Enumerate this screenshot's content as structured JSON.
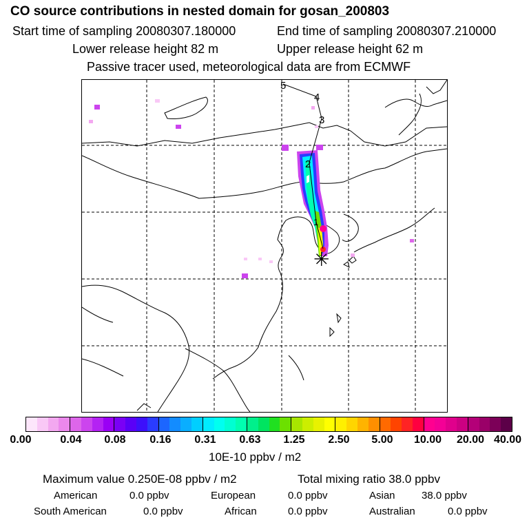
{
  "header": {
    "title": "CO  source contributions in nested domain for gosan_200803",
    "start_time": "Start time of sampling 20080307.180000",
    "end_time": "End time of sampling 20080307.210000",
    "lower_release": "Lower release height   82 m",
    "upper_release": "Upper release height   62 m",
    "tracer_note": "Passive tracer used, meteorological data are from ECMWF"
  },
  "map": {
    "trajectory_labels": [
      "1",
      "2",
      "3",
      "4",
      "5"
    ],
    "receptor_symbol": "✳"
  },
  "colorbar": {
    "blocks": [
      [
        "#fde6fb",
        "#f9c8f6",
        "#f3a8f0",
        "#eb88ec"
      ],
      [
        "#dd66ea",
        "#cc44ee",
        "#b422f3",
        "#9a00f5"
      ],
      [
        "#7a00f5",
        "#5a00f7",
        "#3c10fb",
        "#2a3cff"
      ],
      [
        "#1c66ff",
        "#138cff",
        "#0aaeff",
        "#00cfff"
      ],
      [
        "#00ecff",
        "#00fff0",
        "#00ffd2",
        "#00ffb0"
      ],
      [
        "#00f08c",
        "#00e460",
        "#20e020",
        "#6ce000"
      ],
      [
        "#a8e600",
        "#ccee00",
        "#e8f200",
        "#ffff00"
      ],
      [
        "#fff000",
        "#ffd500",
        "#ffb300",
        "#ff8f00"
      ],
      [
        "#ff6a00",
        "#ff4400",
        "#ff2424",
        "#ff0040"
      ],
      [
        "#ff0090",
        "#f40096",
        "#e0008c",
        "#cc0082"
      ],
      [
        "#b40078",
        "#9a0068",
        "#7c0058",
        "#5c0048"
      ]
    ],
    "ticks": [
      "0.00",
      "0.04",
      "0.08",
      "0.16",
      "0.31",
      "0.63",
      "1.25",
      "2.50",
      "5.00",
      "10.00",
      "20.00",
      "40.00"
    ],
    "units": "10E-10 ppbv / m2"
  },
  "stats": {
    "max_value": "Maximum value  0.250E-08 ppbv / m2",
    "total_mixing": "Total mixing ratio       38.0 ppbv"
  },
  "regions": {
    "american_label": "American",
    "american_value": "0.0 ppbv",
    "european_label": "European",
    "european_value": "0.0 ppbv",
    "asian_label": "Asian",
    "asian_value": "38.0 ppbv",
    "south_american_label": "South American",
    "south_american_value": "0.0 ppbv",
    "african_label": "African",
    "african_value": "0.0 ppbv",
    "australian_label": "Australian",
    "australian_value": "0.0 ppbv"
  }
}
